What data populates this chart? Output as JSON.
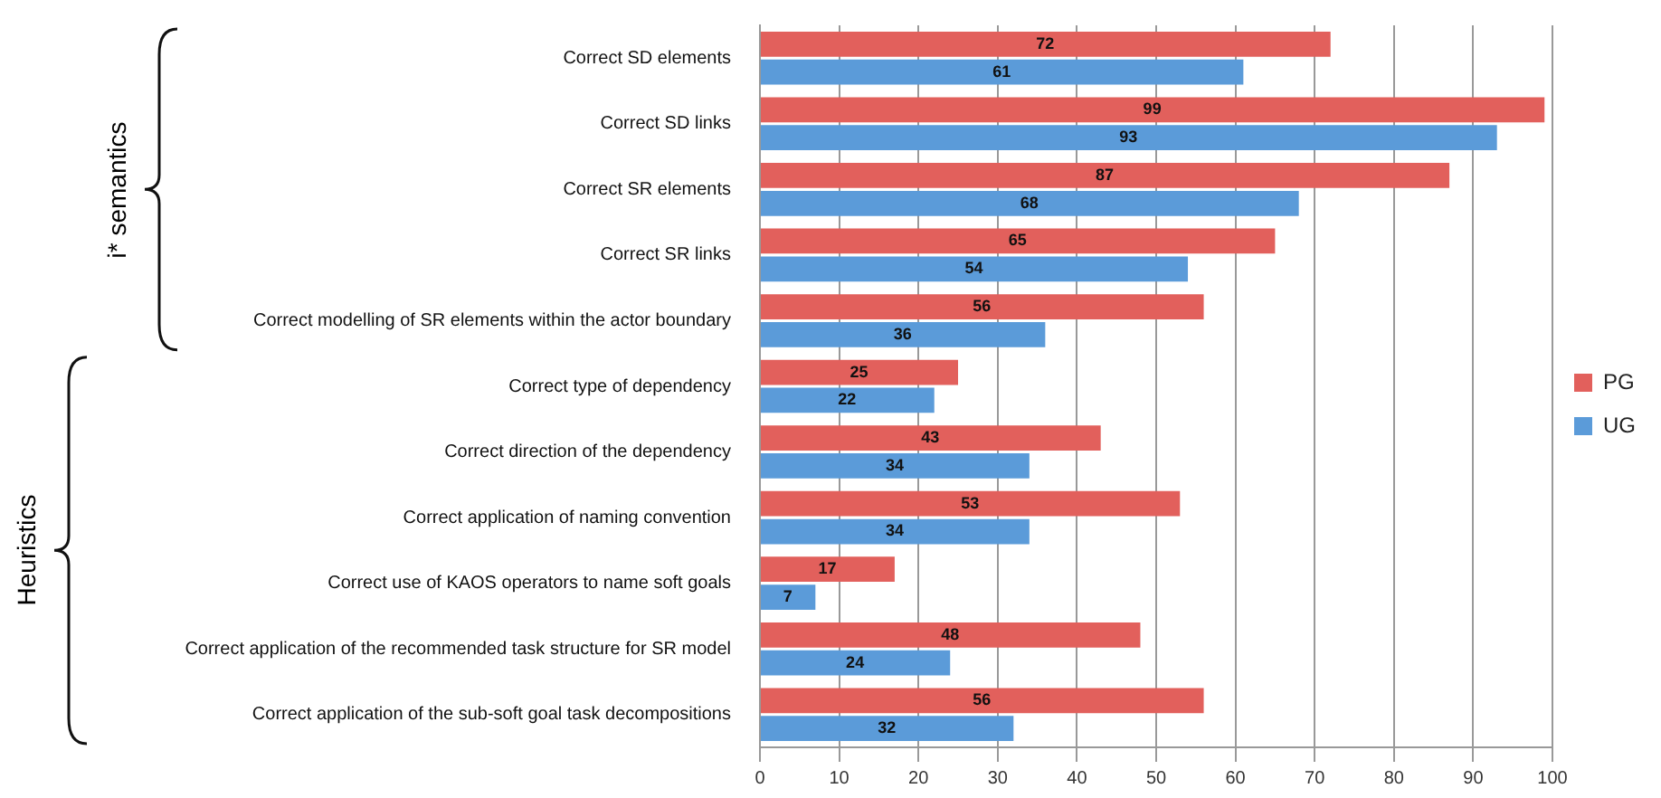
{
  "chart_data": {
    "type": "bar",
    "orientation": "horizontal",
    "categories": [
      "Correct SD elements",
      "Correct SD links",
      "Correct SR elements",
      "Correct SR links",
      "Correct modelling of SR elements within the actor boundary",
      "Correct type of dependency",
      "Correct direction of the dependency",
      "Correct application of naming convention",
      "Correct use of KAOS operators to name soft goals",
      "Correct application of the recommended task structure for SR model",
      "Correct application of the sub-soft goal task decompositions"
    ],
    "series": [
      {
        "name": "PG",
        "color": "#e2605c",
        "values": [
          72,
          99,
          87,
          65,
          56,
          25,
          43,
          53,
          17,
          48,
          56
        ]
      },
      {
        "name": "UG",
        "color": "#5b9bd9",
        "values": [
          61,
          93,
          68,
          54,
          36,
          22,
          34,
          34,
          7,
          24,
          32
        ]
      }
    ],
    "xlim": [
      0,
      100
    ],
    "xticks": [
      0,
      10,
      20,
      30,
      40,
      50,
      60,
      70,
      80,
      90,
      100
    ],
    "grid": "x",
    "legend": "right",
    "data_labels": true,
    "annotations": [
      "i* semantics",
      "Heuristics"
    ]
  }
}
